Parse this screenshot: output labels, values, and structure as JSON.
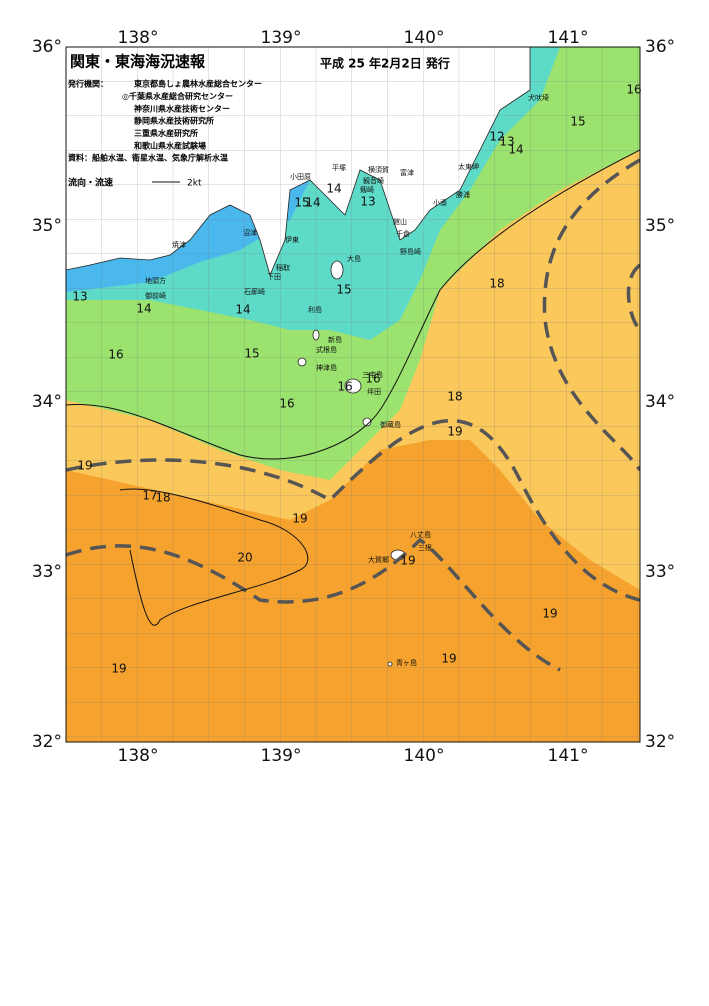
{
  "header": {
    "title": "関東・東海海況速報",
    "date": "平成 25 年2月2日 発行",
    "agencies_label": "発行機関：",
    "agencies": [
      "東京都島しょ農林水産総合センター",
      "◎千葉県水産総合研究センター",
      "神奈川県水産技術センター",
      "静岡県水産技術研究所",
      "三重県水産研究所",
      "和歌山県水産試験場"
    ],
    "source": "資料：船舶水温、衛星水温、気象庁解析水温",
    "legend_label": "流向・流速",
    "legend_unit": "2kt"
  },
  "axes": {
    "lon": [
      "138°",
      "139°",
      "140°",
      "141°"
    ],
    "lat": [
      "36°",
      "35°",
      "34°",
      "33°",
      "32°"
    ]
  },
  "places": [
    "犬吠埼",
    "太東岬",
    "勝浦",
    "小湊",
    "富津",
    "館山",
    "千倉",
    "野島崎",
    "観音崎",
    "剱崎",
    "横須賀",
    "平塚",
    "小田原",
    "大島",
    "伊東",
    "稲取",
    "下田",
    "石廊崎",
    "沼津",
    "焼津",
    "地頭方",
    "御前崎",
    "利島",
    "新島",
    "式根島",
    "神津島",
    "三宅島",
    "坪田",
    "御蔵島",
    "八丈島",
    "三根",
    "大賀郷",
    "青ヶ島"
  ],
  "temperatures": [
    16,
    15,
    12,
    13,
    14,
    14,
    15,
    14,
    13,
    13,
    14,
    14,
    16,
    15,
    15,
    16,
    18,
    18,
    19,
    19,
    16,
    16,
    17,
    18,
    19,
    20,
    19,
    19,
    19,
    19
  ]
}
